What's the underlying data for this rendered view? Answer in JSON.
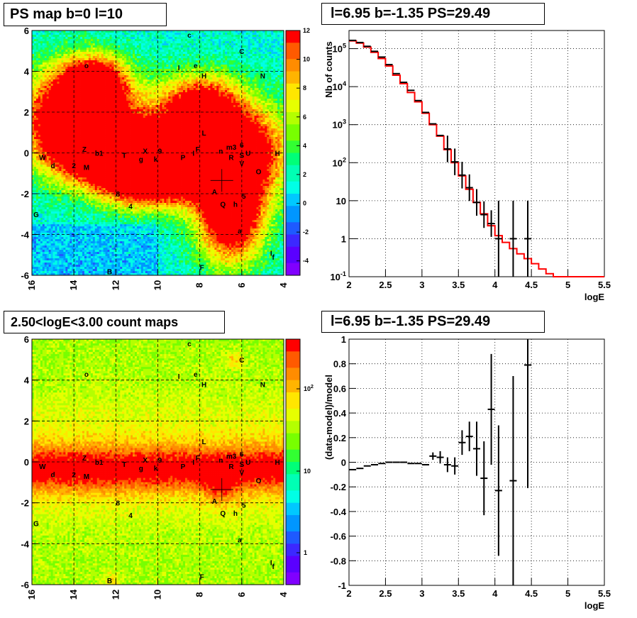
{
  "panels": {
    "tl_title": "PS map b=0 l=10",
    "tr_title": "l=6.95 b=-1.35 PS=29.49",
    "bl_title": "2.50<logE<3.00 count maps",
    "br_title": "l=6.95 b=-1.35 PS=29.49"
  },
  "chart_data": [
    {
      "type": "heatmap",
      "title": "PS map b=0 l=10",
      "x_ticks": [
        "16",
        "14",
        "12",
        "10",
        "8",
        "6",
        "4"
      ],
      "y_ticks": [
        "6",
        "4",
        "2",
        "0",
        "-2",
        "-4",
        "-6"
      ],
      "xlim": [
        16,
        4
      ],
      "ylim": [
        -6,
        6
      ],
      "colorbar": {
        "ticks": [
          "12",
          "10",
          "8",
          "6",
          "4",
          "2",
          "0",
          "-2",
          "-4"
        ],
        "range": [
          -5,
          12
        ]
      },
      "marker": {
        "l": 6.95,
        "b": -1.35
      },
      "source_labels": [
        {
          "t": "c",
          "l": 8.5,
          "b": 5.8
        },
        {
          "t": "C",
          "l": 6.0,
          "b": 5.0
        },
        {
          "t": "o",
          "l": 13.4,
          "b": 4.3
        },
        {
          "t": "I",
          "l": 9.0,
          "b": 4.2
        },
        {
          "t": "e",
          "l": 8.2,
          "b": 4.3
        },
        {
          "t": "H",
          "l": 7.8,
          "b": 3.8
        },
        {
          "t": "N",
          "l": 5.0,
          "b": 3.8
        },
        {
          "t": "L",
          "l": 7.8,
          "b": 1.0
        },
        {
          "t": "m3",
          "l": 6.5,
          "b": 0.3
        },
        {
          "t": "6",
          "l": 6.0,
          "b": 0.4
        },
        {
          "t": "n",
          "l": 7.0,
          "b": 0.1
        },
        {
          "t": "Z",
          "l": 13.5,
          "b": 0.2
        },
        {
          "t": "b1",
          "l": 12.8,
          "b": 0.0
        },
        {
          "t": "T",
          "l": 11.6,
          "b": -0.1
        },
        {
          "t": "X",
          "l": 10.6,
          "b": 0.1
        },
        {
          "t": "9",
          "l": 9.9,
          "b": 0.1
        },
        {
          "t": "F",
          "l": 8.1,
          "b": 0.2
        },
        {
          "t": "I",
          "l": 8.3,
          "b": 0.0
        },
        {
          "t": "P",
          "l": 8.8,
          "b": -0.2
        },
        {
          "t": "R",
          "l": 6.5,
          "b": -0.2
        },
        {
          "t": "S",
          "l": 6.0,
          "b": -0.1
        },
        {
          "t": "U",
          "l": 5.7,
          "b": 0.0
        },
        {
          "t": "H",
          "l": 4.3,
          "b": 0.0
        },
        {
          "t": "W",
          "l": 15.5,
          "b": -0.2
        },
        {
          "t": "d",
          "l": 15.0,
          "b": -0.6
        },
        {
          "t": "2",
          "l": 14.0,
          "b": -0.6
        },
        {
          "t": "M",
          "l": 13.4,
          "b": -0.7
        },
        {
          "t": "g",
          "l": 10.8,
          "b": -0.3
        },
        {
          "t": "k",
          "l": 10.1,
          "b": -0.3
        },
        {
          "t": "V",
          "l": 6.0,
          "b": -0.5
        },
        {
          "t": "O",
          "l": 5.2,
          "b": -0.9
        },
        {
          "t": "8",
          "l": 11.9,
          "b": -2.0
        },
        {
          "t": "A",
          "l": 7.3,
          "b": -1.9
        },
        {
          "t": "5",
          "l": 5.9,
          "b": -2.1
        },
        {
          "t": "4",
          "l": 11.3,
          "b": -2.6
        },
        {
          "t": "Q",
          "l": 6.9,
          "b": -2.5
        },
        {
          "t": "h",
          "l": 6.3,
          "b": -2.5
        },
        {
          "t": "G",
          "l": 15.8,
          "b": -3.0
        },
        {
          "t": "a",
          "l": 6.1,
          "b": -3.8
        },
        {
          "t": "I",
          "l": 4.6,
          "b": -4.9
        },
        {
          "t": "f",
          "l": 4.5,
          "b": -5.1
        },
        {
          "t": "B",
          "l": 12.3,
          "b": -5.8
        },
        {
          "t": "F",
          "l": 7.9,
          "b": -5.6
        }
      ]
    },
    {
      "type": "line",
      "title": "l=6.95 b=-1.35 PS=29.49",
      "xlabel": "logE",
      "ylabel": "Nb of counts",
      "xlim": [
        2,
        5.5
      ],
      "ylim": [
        0.1,
        300000
      ],
      "yscale": "log",
      "x_ticks": [
        "2",
        "2.5",
        "3",
        "3.5",
        "4",
        "4.5",
        "5",
        "5.5"
      ],
      "y_ticks": [
        "10^5",
        "10^4",
        "10^3",
        "10^2",
        "10",
        "1",
        "10^-1"
      ],
      "series": [
        {
          "style": "histogram",
          "color": "#ff0000",
          "bin_edges": [
            2.0,
            2.1,
            2.2,
            2.3,
            2.4,
            2.5,
            2.6,
            2.7,
            2.8,
            2.9,
            3.0,
            3.1,
            3.2,
            3.3,
            3.4,
            3.5,
            3.6,
            3.7,
            3.8,
            3.9,
            4.0,
            4.1,
            4.2,
            4.3,
            4.4,
            4.5,
            4.6,
            4.7,
            4.8,
            4.9,
            5.0,
            5.1,
            5.2,
            5.3,
            5.4,
            5.5
          ],
          "values": [
            160000,
            140000,
            110000,
            80000,
            55000,
            35000,
            20000,
            12000,
            7000,
            4000,
            2000,
            1000,
            500,
            220,
            100,
            45,
            20,
            9,
            4.5,
            2.2,
            1.2,
            0.8,
            0.55,
            0.4,
            0.3,
            0.22,
            0.16,
            0.12,
            0.1,
            0.1,
            0.1,
            0.1,
            0.1,
            0.1,
            0.1
          ]
        },
        {
          "style": "points",
          "color": "#000000",
          "x": [
            2.05,
            2.15,
            2.25,
            2.35,
            2.45,
            2.55,
            2.65,
            2.75,
            2.85,
            2.95,
            3.05,
            3.15,
            3.25,
            3.35,
            3.45,
            3.55,
            3.65,
            3.75,
            3.85,
            3.95,
            4.05,
            4.25,
            4.45
          ],
          "y": [
            165000,
            145000,
            115000,
            85000,
            60000,
            38000,
            22000,
            13000,
            8000,
            4300,
            2100,
            1050,
            520,
            230,
            105,
            47,
            22,
            9,
            4.3,
            2.5,
            1,
            1,
            1
          ]
        }
      ]
    },
    {
      "type": "heatmap",
      "title": "2.50<logE<3.00 count maps",
      "x_ticks": [
        "16",
        "14",
        "12",
        "10",
        "8",
        "6",
        "4"
      ],
      "y_ticks": [
        "6",
        "4",
        "2",
        "0",
        "-2",
        "-4",
        "-6"
      ],
      "xlim": [
        16,
        4
      ],
      "ylim": [
        -6,
        6
      ],
      "colorbar": {
        "ticks": [
          "10^2",
          "10",
          "1"
        ],
        "scale": "log"
      },
      "marker": {
        "l": 6.95,
        "b": -1.35
      }
    },
    {
      "type": "scatter",
      "title": "l=6.95 b=-1.35 PS=29.49",
      "xlabel": "logE",
      "ylabel": "(data-model)/model",
      "xlim": [
        2,
        5.5
      ],
      "ylim": [
        -1,
        1
      ],
      "x_ticks": [
        "2",
        "2.5",
        "3",
        "3.5",
        "4",
        "4.5",
        "5",
        "5.5"
      ],
      "y_ticks": [
        "1",
        "0.8",
        "0.6",
        "0.4",
        "0.2",
        "0",
        "-0.2",
        "-0.4",
        "-0.6",
        "-0.8",
        "-1"
      ],
      "series": [
        {
          "color": "#000000",
          "x": [
            2.05,
            2.15,
            2.25,
            2.35,
            2.45,
            2.55,
            2.65,
            2.75,
            2.85,
            2.95,
            3.05,
            3.15,
            3.25,
            3.35,
            3.45,
            3.55,
            3.65,
            3.75,
            3.85,
            3.95,
            4.05,
            4.25,
            4.45
          ],
          "y": [
            -0.06,
            -0.05,
            -0.03,
            -0.02,
            -0.01,
            0.0,
            0.0,
            0.0,
            -0.01,
            -0.01,
            -0.02,
            0.05,
            0.04,
            -0.02,
            -0.03,
            0.16,
            0.21,
            0.11,
            -0.13,
            0.43,
            -0.23,
            -0.15,
            0.79
          ],
          "err": [
            0.01,
            0.01,
            0.01,
            0.01,
            0.01,
            0.01,
            0.01,
            0.01,
            0.01,
            0.01,
            0.02,
            0.03,
            0.05,
            0.06,
            0.07,
            0.1,
            0.12,
            0.22,
            0.3,
            0.45,
            0.53,
            0.85,
            1.0
          ]
        }
      ]
    }
  ]
}
